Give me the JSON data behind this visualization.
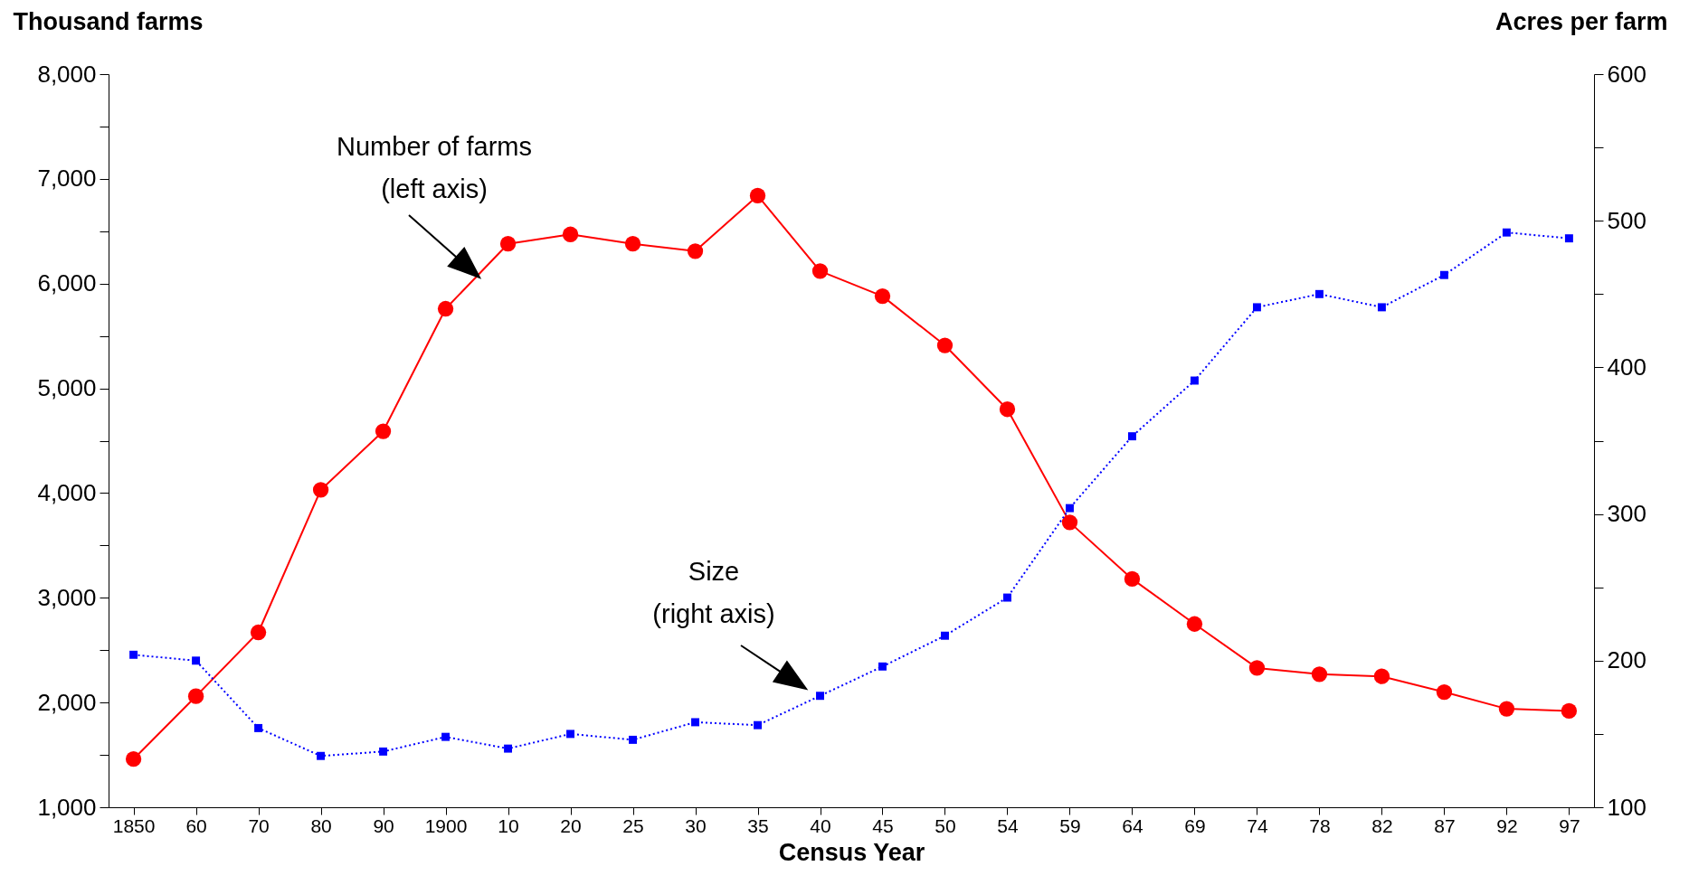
{
  "chart_data": {
    "type": "line",
    "xlabel": "Census Year",
    "ylabel": "Thousand farms",
    "y2label": "Acres per farm",
    "categories": [
      "1850",
      "60",
      "70",
      "80",
      "90",
      "1900",
      "10",
      "20",
      "25",
      "30",
      "35",
      "40",
      "45",
      "50",
      "54",
      "59",
      "64",
      "69",
      "74",
      "78",
      "82",
      "87",
      "92",
      "97"
    ],
    "series": [
      {
        "color": "#ff0000",
        "marker": "circle",
        "line_style": "solid",
        "values": [
          1460,
          2060,
          2670,
          4030,
          4590,
          5760,
          6380,
          6470,
          6380,
          6310,
          6840,
          6120,
          5880,
          5410,
          4800,
          3720,
          3180,
          2750,
          2330,
          2270,
          2250,
          2100,
          1940,
          1920
        ]
      },
      {
        "axis": "y2",
        "color": "#0000ff",
        "marker": "square",
        "line_style": "dotted",
        "values": [
          204,
          200,
          154,
          135,
          138,
          148,
          140,
          150,
          146,
          158,
          156,
          176,
          196,
          217,
          243,
          304,
          353,
          391,
          441,
          450,
          441,
          463,
          492,
          488
        ]
      }
    ],
    "ylim": [
      1000,
      8000
    ],
    "yticks": [
      {
        "value": 1000,
        "label": "1,000"
      },
      {
        "value": 1500,
        "label": null
      },
      {
        "value": 2000,
        "label": "2,000"
      },
      {
        "value": 2500,
        "label": null
      },
      {
        "value": 3000,
        "label": "3,000"
      },
      {
        "value": 3500,
        "label": null
      },
      {
        "value": 4000,
        "label": "4,000"
      },
      {
        "value": 4500,
        "label": null
      },
      {
        "value": 5000,
        "label": "5,000"
      },
      {
        "value": 5500,
        "label": null
      },
      {
        "value": 6000,
        "label": "6,000"
      },
      {
        "value": 6500,
        "label": null
      },
      {
        "value": 7000,
        "label": "7,000"
      },
      {
        "value": 7500,
        "label": null
      },
      {
        "value": 8000,
        "label": "8,000"
      }
    ],
    "y2lim": [
      100,
      600
    ],
    "y2ticks": [
      100,
      {
        "value": 150,
        "label": null
      },
      200,
      {
        "value": 250,
        "label": null
      },
      300,
      {
        "value": 350,
        "label": null
      },
      400,
      {
        "value": 450,
        "label": null
      },
      500,
      {
        "value": 550,
        "label": null
      },
      600
    ],
    "grid": false,
    "annotations": [
      "Number of farms\n(left axis)",
      "Size\n(right axis)"
    ]
  }
}
